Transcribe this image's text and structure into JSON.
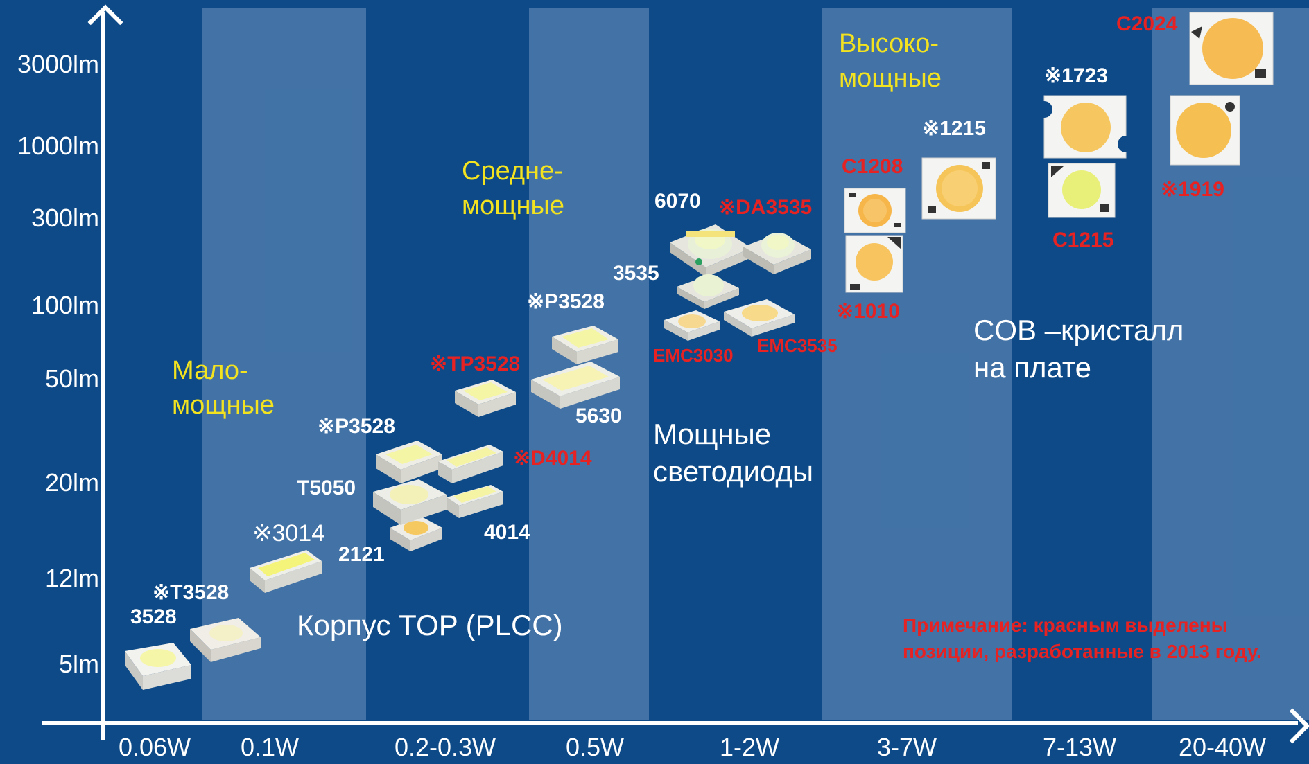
{
  "y_axis": {
    "ticks": [
      "3000lm",
      "1000lm",
      "300lm",
      "100lm",
      "50lm",
      "20lm",
      "12lm",
      "5lm"
    ]
  },
  "x_axis": {
    "ticks": [
      "0.06W",
      "0.1W",
      "0.2-0.3W",
      "0.5W",
      "1-2W",
      "3-7W",
      "7-13W",
      "20-40W"
    ]
  },
  "groups": {
    "low": [
      "Мало-",
      "мощные"
    ],
    "mid": [
      "Средне-",
      "мощные"
    ],
    "high": [
      "Высоко-",
      "мощные"
    ],
    "plcc": "Корпус TOP (PLCC)",
    "power": [
      "Мощные",
      "светодиоды"
    ],
    "cob": [
      "COB –кристалл",
      "на плате"
    ]
  },
  "labels": {
    "l3528": "3528",
    "t3528": "※T3528",
    "l3014": "※3014",
    "l2121": "2121",
    "t5050": "T5050",
    "p3528a": "※P3528",
    "l4014": "4014",
    "d4014": "※D4014",
    "tp3528": "※TP3528",
    "p3528b": "※P3528",
    "l5630": "5630",
    "l6070": "6070",
    "da3535": "※DA3535",
    "l3535": "3535",
    "emc3030": "EMC3030",
    "emc3535": "EMC3535",
    "c1208": "C1208",
    "l1010": "※1010",
    "l1215": "※1215",
    "l1723": "※1723",
    "c1215": "C1215",
    "c2024": "C2024",
    "l1919": "※1919"
  },
  "note": [
    "Примечание: красным выделены",
    "позиции, разработанные в 2013 году."
  ],
  "colors": {
    "background": "#0d4a87",
    "band": "#7fa3cc",
    "highlight_text": "#e62222",
    "group_title": "#f2e21f",
    "axis": "#ffffff"
  }
}
